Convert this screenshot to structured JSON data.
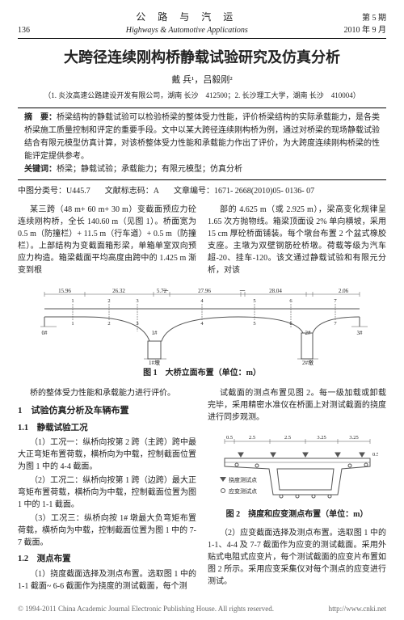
{
  "header": {
    "page_num": "136",
    "journal_cn": "公 路 与 汽 运",
    "journal_en": "Highways & Automotive Applications",
    "issue": "第 5 期",
    "date": "2010 年 9 月"
  },
  "title": "大跨径连续刚构桥静载试验研究及仿真分析",
  "authors": "戴 兵¹，吕毅刚²",
  "affil": "（1. 炎汝高速公路建设开发有限公司，湖南 长沙　412500；2. 长沙理工大学，湖南 长沙　410004）",
  "abstract_label": "摘　要：",
  "abstract_text": "桥梁结构的静载试验可以检验桥梁的整体受力性能，评价桥梁结构的实际承载能力，是各类桥梁施工质量控制和评定的重要手段。文中以某大跨径连续刚构桥为例，通过对桥梁的现场静载试验结合有限元模型仿真计算，对该桥整体受力性能和承载能力作出了评价，为大跨度连续刚构桥梁的性能评定提供参考。",
  "keywords_label": "关键词：",
  "keywords_text": "桥梁；静载试验；承载能力；有限元模型；仿真分析",
  "meta": {
    "clc": "中图分类号：U445.7",
    "code": "文献标志码：A",
    "article_id": "文章编号：1671- 2668(2010)05- 0136- 07"
  },
  "body": {
    "p1": "某三跨（48 m+ 60 m+ 30 m）变截面预应力砼连续刚构桥，全长 140.60 m（见图 1）。桥面宽为 0.5 m（防撞栏）+ 11.5 m（行车道）+ 0.5 m（防撞栏）。上部结构为变截面箱形梁，单箱单室双向预应力构造。箱梁截面平均高度由跨中的 1.425 m 渐变到根",
    "p2": "部的 4.625 m（或 2.925 m），梁高变化规律呈 1.65 次方抛物线。箱梁顶面设 2% 单向横坡，采用 15 cm 厚砼桥面铺装。每个墩台布置 2 个盆式橡胶支座。主墩为双壁钢筋砼桥墩。荷载等级为汽车超-20、挂车-120。该文通过静载试验和有限元分析，对该",
    "p3": "桥的整体受力性能和承载能力进行评价。",
    "h1": "1　试验仿真分析及车辆布置",
    "h1_1": "1.1　静载试验工况",
    "p4": "（1）工况一：纵桥向按第 2 跨（主跨）跨中最大正弯矩布置荷载，横桥向为中载，控制截面位置为图 1 中的 4-4 截面。",
    "p5": "（2）工况二：纵桥向按第 1 跨（边跨）最大正弯矩布置荷载，横桥向为中载，控制截面位置为图 1 中的 1-1 截面。",
    "p6": "（3）工况三：纵桥向按 1# 墩最大负弯矩布置荷载，横桥向为中载，控制截面位置为图 1 中的 7-7 截面。",
    "h1_2": "1.2　测点布置",
    "p7": "（1）挠度截面选择及测点布置。选取图 1 中的 1-1 截面~ 6-6 截面作为挠度的测试截面，每个测",
    "p8": "试截面的测点布置见图 2。每一级加载或卸载完毕，采用精密水准仪在桥面上对测试截面的挠度进行同步观测。",
    "p9": "（2）应变截面选择及测点布置。选取图 1 中的 1-1、4-4 及 7-7 截面作为应变的测试截面。采用外贴式电阻式应变片，每个测试截面的应变片布置如图 2 所示。采用应变采集仪对每个测点的应变进行测试。"
  },
  "fig1": {
    "caption": "图 1　大桥立面布置（单位：m）",
    "dims": [
      "15.96",
      "26.32",
      "5.72",
      "一",
      "27.96",
      "一",
      "28.04",
      "2.06"
    ],
    "marks": [
      "0#",
      "1#",
      "2#",
      "3#"
    ],
    "pier_labels": [
      "1#墩",
      "2#墩"
    ],
    "sec": [
      "1",
      "2",
      "3",
      "4",
      "5",
      "6",
      "7"
    ],
    "stroke": "#555555",
    "fill": "#ffffff",
    "text_color": "#222222",
    "font_size": 7
  },
  "fig2": {
    "caption": "图 2　挠度和应变测点布置（单位：m）",
    "dims_top": [
      "0.5",
      "2.5",
      "2.5",
      "3.25",
      "3.25"
    ],
    "dims_right": [
      "0.5"
    ],
    "legend1": "挠度测试点",
    "legend2": "应变测试点",
    "stroke": "#555555",
    "text_color": "#222222",
    "font_size": 7
  },
  "footer": {
    "left": "© 1994-2011 China Academic Journal Electronic Publishing House. All rights reserved.",
    "right": "http://www.cnki.net"
  }
}
